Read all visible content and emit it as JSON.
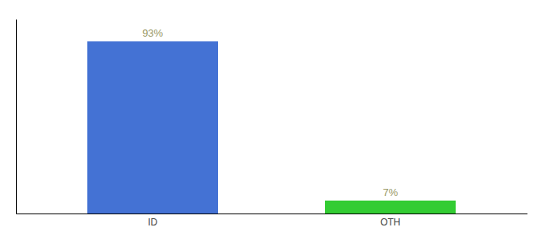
{
  "chart_data": {
    "type": "bar",
    "categories": [
      "ID",
      "OTH"
    ],
    "values": [
      93,
      7
    ],
    "value_labels": [
      "93%",
      "7%"
    ],
    "colors": [
      "#4472d4",
      "#33cc33"
    ],
    "ylim": [
      0,
      105
    ],
    "data_labels": true,
    "tick_labels": "x"
  }
}
